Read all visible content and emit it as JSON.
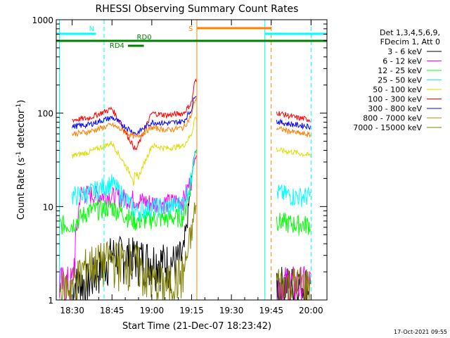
{
  "chart_data": {
    "type": "line",
    "title": "RHESSI Observing Summary Count Rates",
    "xlabel": "Start Time (21-Dec-07 18:23:42)",
    "ylabel_main": "Count Rate (s",
    "ylabel_sup1": "-1",
    "ylabel_mid": " detector",
    "ylabel_sup2": "-1",
    "ylabel_end": ")",
    "y_scale": "log",
    "ylim": [
      1,
      1000
    ],
    "xlim_minutes": [
      18.4,
      20.1
    ],
    "x_tick_labels": [
      "18:30",
      "18:45",
      "19:00",
      "19:15",
      "19:30",
      "19:45",
      "20:00"
    ],
    "x_ticks": [
      18.5,
      18.75,
      19.0,
      19.25,
      19.5,
      19.75,
      20.0
    ],
    "y_tick_labels": [
      "1",
      "10",
      "100",
      "1000"
    ],
    "y_ticks": [
      1,
      10,
      100,
      1000
    ],
    "legend_header": [
      "Det 1,3,4,5,6,9,",
      "FDecim 1, Att 0"
    ],
    "legend_position": "right",
    "footer_date": "17-Oct-2021 09:55",
    "data_gaps": [
      [
        19.283,
        19.783
      ]
    ],
    "series": [
      {
        "name": "3 - 6 keV",
        "color": "#000000",
        "x": [
          18.5,
          18.6,
          18.75,
          18.9,
          19.0,
          19.1,
          19.15,
          19.2,
          19.25,
          19.27,
          19.8,
          19.9,
          20.0
        ],
        "y": [
          1.5,
          1.6,
          3.2,
          3.0,
          2.8,
          2.6,
          2.6,
          3.0,
          20,
          40,
          1.5,
          1.5,
          1.5
        ]
      },
      {
        "name": "6 - 12 keV",
        "color": "#ff00ff",
        "x": [
          18.42,
          18.5,
          18.55,
          18.75,
          18.9,
          19.0,
          19.1,
          19.2,
          19.25,
          19.27,
          19.8,
          19.9,
          20.0
        ],
        "y": [
          1.5,
          1.5,
          14,
          13,
          12,
          11,
          11,
          12,
          20,
          35,
          1.5,
          1.5,
          1.5
        ]
      },
      {
        "name": "12 - 25 keV",
        "color": "#00ff00",
        "x": [
          18.42,
          18.5,
          18.6,
          18.75,
          18.9,
          19.0,
          19.1,
          19.2,
          19.25,
          19.27,
          19.8,
          19.9,
          20.0
        ],
        "y": [
          6.5,
          6.5,
          9,
          10,
          7,
          7.5,
          7.5,
          8,
          20,
          40,
          7,
          6.5,
          6.5
        ]
      },
      {
        "name": "25 - 50 keV",
        "color": "#00ffff",
        "x": [
          18.5,
          18.6,
          18.75,
          18.9,
          19.0,
          19.1,
          19.2,
          19.25,
          19.27,
          19.8,
          19.9,
          20.0
        ],
        "y": [
          13,
          14,
          18,
          9,
          10,
          10,
          11,
          20,
          40,
          14,
          13,
          13
        ]
      },
      {
        "name": "50 - 100 keV",
        "color": "#dddd00",
        "x": [
          18.5,
          18.6,
          18.75,
          18.9,
          19.0,
          19.1,
          19.2,
          19.25,
          19.27,
          19.8,
          19.9,
          20.0
        ],
        "y": [
          35,
          38,
          48,
          18,
          45,
          42,
          45,
          60,
          90,
          40,
          38,
          35
        ]
      },
      {
        "name": "100 - 300 keV",
        "color": "#ff0000",
        "x": [
          18.5,
          18.6,
          18.75,
          18.9,
          19.0,
          19.1,
          19.2,
          19.25,
          19.27,
          19.8,
          19.9,
          20.0
        ],
        "y": [
          85,
          88,
          112,
          40,
          100,
          95,
          100,
          130,
          220,
          100,
          90,
          85
        ]
      },
      {
        "name": "300 - 800 keV",
        "color": "#0000ff",
        "x": [
          18.5,
          18.6,
          18.75,
          18.9,
          19.0,
          19.1,
          19.2,
          19.25,
          19.27,
          19.8,
          19.9,
          20.0
        ],
        "y": [
          72,
          75,
          90,
          60,
          80,
          78,
          82,
          110,
          160,
          80,
          75,
          72
        ]
      },
      {
        "name": "800 - 7000 keV",
        "color": "#ff8000",
        "x": [
          18.5,
          18.6,
          18.75,
          18.9,
          19.0,
          19.1,
          19.2,
          19.25,
          19.27,
          19.8,
          19.9,
          20.0
        ],
        "y": [
          60,
          63,
          75,
          55,
          70,
          66,
          70,
          95,
          140,
          68,
          62,
          58
        ]
      },
      {
        "name": "7000 - 15000 keV",
        "color": "#808000",
        "x": [
          18.42,
          18.5,
          18.6,
          18.75,
          18.9,
          19.0,
          19.1,
          19.2,
          19.25,
          19.27,
          19.8,
          19.9,
          20.0
        ],
        "y": [
          1.3,
          1.5,
          2.5,
          2.8,
          2.6,
          1.6,
          1.5,
          2.0,
          5,
          10,
          1.5,
          1.5,
          1.5
        ]
      }
    ],
    "flag_bars": [
      {
        "label": "N",
        "color": "#00ffff",
        "ranges": [
          [
            18.4,
            18.65
          ],
          [
            19.71,
            20.1
          ]
        ],
        "level": 1
      },
      {
        "label": "S",
        "color": "#ff8000",
        "ranges": [
          [
            19.283,
            19.75
          ]
        ],
        "level": 2
      },
      {
        "label": "RD0",
        "color": "#008000",
        "ranges": [
          [
            18.4,
            20.1
          ]
        ],
        "level": 3
      },
      {
        "label": "RD4",
        "color": "#008000",
        "ranges": [
          [
            18.85,
            18.95
          ]
        ],
        "level": 4
      }
    ],
    "vertical_markers": [
      {
        "x": 18.42,
        "color": "#00ffff",
        "style": "solid"
      },
      {
        "x": 18.7,
        "color": "#00ffff",
        "style": "dashed"
      },
      {
        "x": 19.283,
        "color": "#ff8000",
        "style": "solid"
      },
      {
        "x": 19.71,
        "color": "#00ffff",
        "style": "solid"
      },
      {
        "x": 19.75,
        "color": "#ff8000",
        "style": "dashed"
      },
      {
        "x": 20.0,
        "color": "#00ffff",
        "style": "dashed"
      }
    ]
  }
}
